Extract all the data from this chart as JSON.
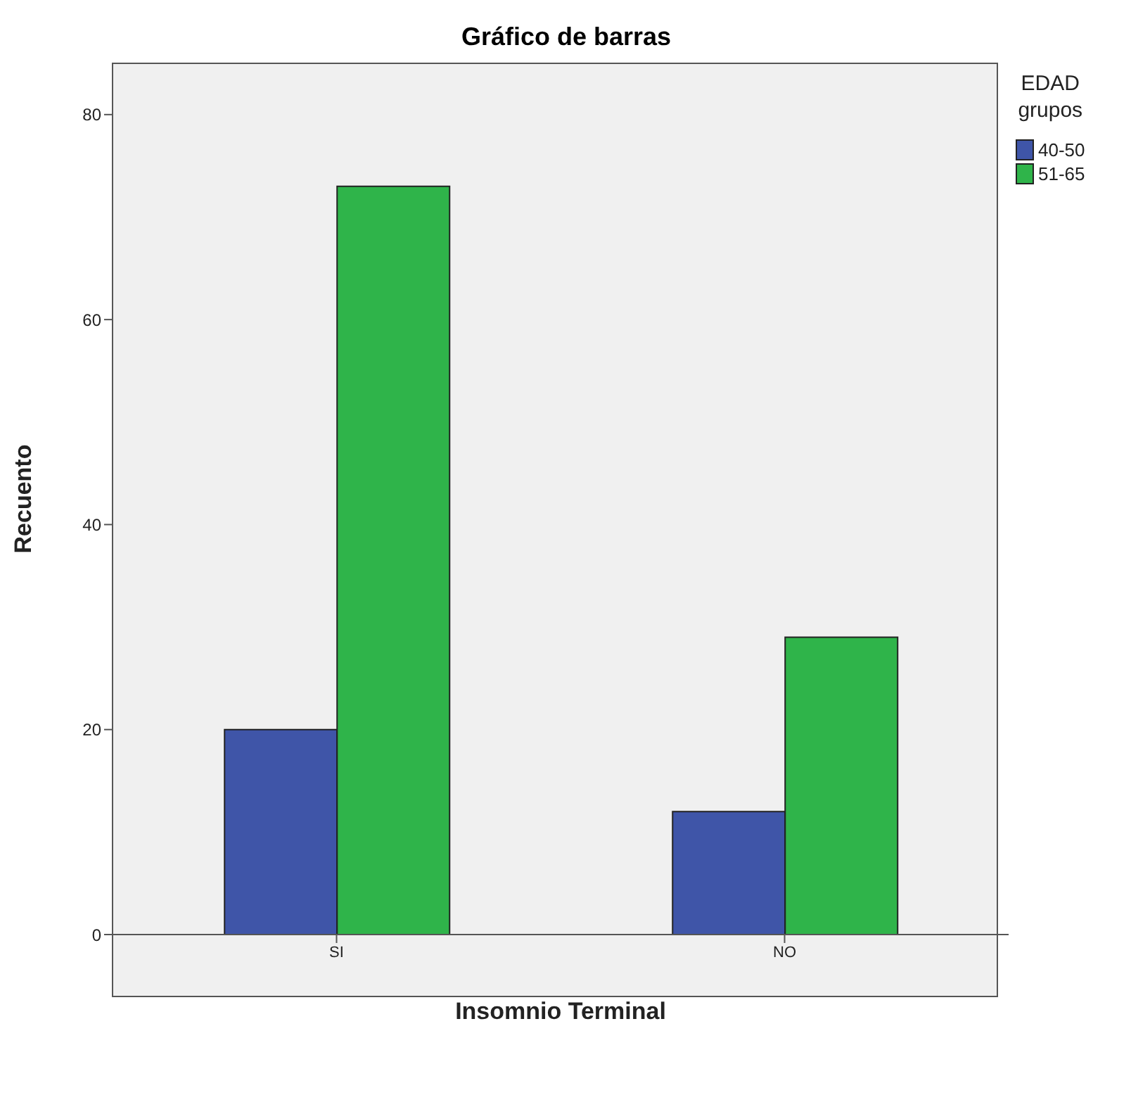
{
  "chart_data": {
    "type": "bar",
    "title": "Gráfico de barras",
    "xlabel": "Insomnio Terminal",
    "ylabel": "Recuento",
    "legend_title": "EDAD grupos",
    "categories": [
      "SI",
      "NO"
    ],
    "series": [
      {
        "name": "40-50",
        "color": "#3f55a8",
        "values": [
          20,
          12
        ]
      },
      {
        "name": "51-65",
        "color": "#2fb44a",
        "values": [
          73,
          29
        ]
      }
    ],
    "ylim": [
      0,
      85
    ],
    "yticks": [
      0,
      20,
      40,
      60,
      80
    ],
    "grid": false,
    "legend": "top right"
  }
}
